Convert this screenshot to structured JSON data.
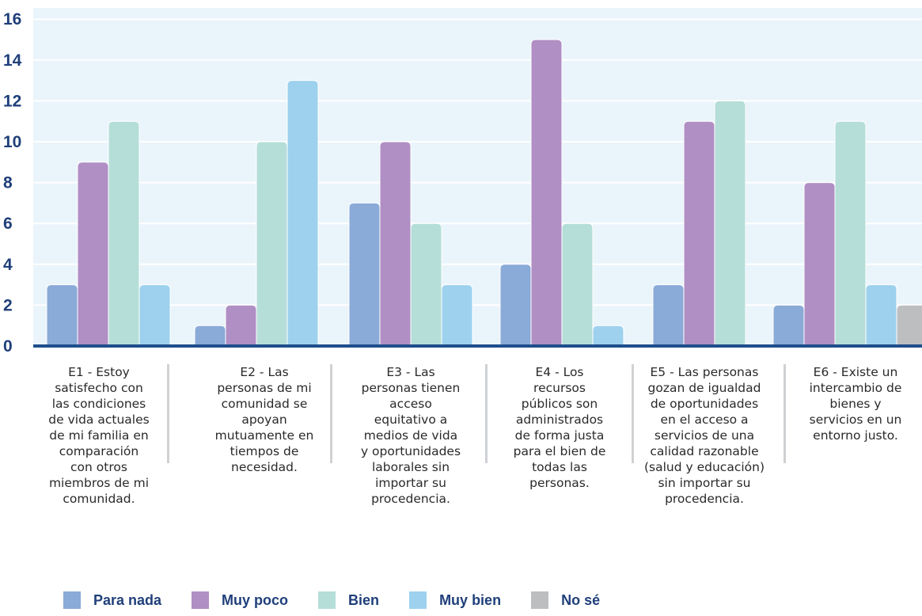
{
  "chart_data": {
    "type": "bar",
    "categories": [
      "E1 - Estoy\nsatisfecho con\nlas condiciones\nde vida actuales\nde mi familia en\ncomparación\ncon otros\nmiembros de mi\ncomunidad.",
      "E2 - Las\npersonas de mi\ncomunidad se\napoyan\nmutuamente en\ntiempos de\nnecesidad.",
      "E3 - Las\npersonas tienen\nacceso\nequitativo a\nmedios de vida\ny oportunidades\nlaborales sin\nimportar su\nprocedencia.",
      "E4 - Los\nrecursos\npúblicos son\nadministrados\nde forma justa\npara el bien de\ntodas las\npersonas.",
      "E5 - Las personas\ngozan de igualdad\nde oportunidades\nen el acceso a\nservicios de una\ncalidad razonable\n(salud y educación)\nsin importar su\nprocedencia.",
      "E6 - Existe un\nintercambio de\nbienes y\nservicios en un\nentorno justo."
    ],
    "series": [
      {
        "name": "Para nada",
        "color": "#8aaad8",
        "values": [
          3,
          1,
          7,
          4,
          3,
          2
        ]
      },
      {
        "name": "Muy poco",
        "color": "#b08fc4",
        "values": [
          9,
          2,
          10,
          15,
          11,
          8
        ]
      },
      {
        "name": "Bien",
        "color": "#b5ded8",
        "values": [
          11,
          10,
          6,
          6,
          12,
          11
        ]
      },
      {
        "name": "Muy bien",
        "color": "#9dd1ee",
        "values": [
          3,
          13,
          3,
          1,
          0,
          3
        ]
      },
      {
        "name": "No sé",
        "color": "#bcbec0",
        "values": [
          0,
          0,
          0,
          0,
          0,
          2
        ]
      }
    ],
    "yticks": [
      "0",
      "2",
      "4",
      "6",
      "8",
      "10",
      "12",
      "14",
      "16"
    ],
    "ylim": [
      0,
      17
    ],
    "grid": true,
    "legend_position": "bottom",
    "colors": {
      "plot_background": "#eaf4fb",
      "axis_line": "#1f4e8c",
      "tick_text": "#1f3f7a"
    }
  }
}
